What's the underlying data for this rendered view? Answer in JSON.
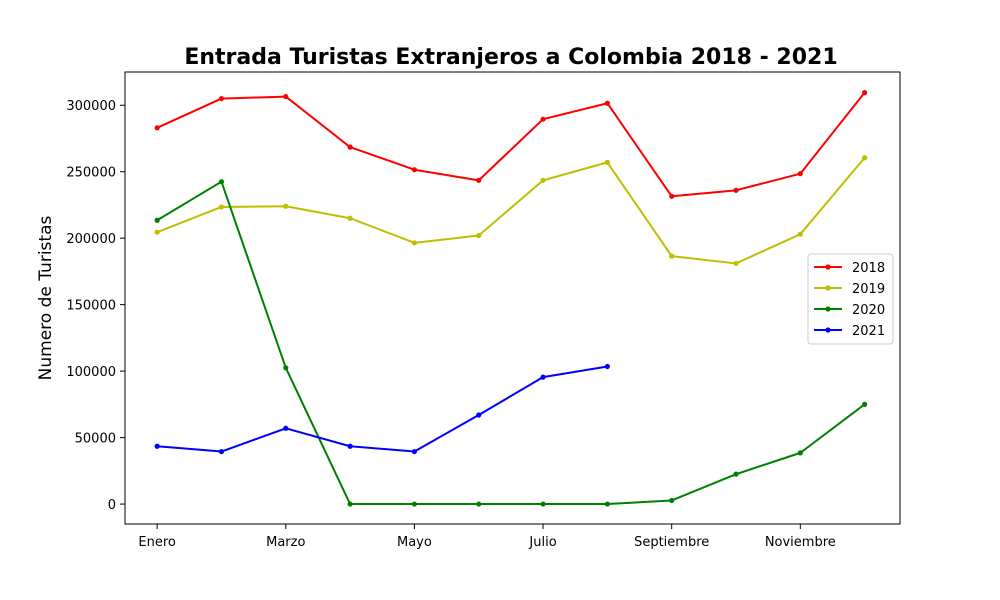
{
  "chart_data": {
    "type": "line",
    "title": "Entrada Turistas Extranjeros a Colombia 2018 - 2021",
    "xlabel": "",
    "ylabel": "Numero de Turistas",
    "x_tick_labels": [
      {
        "index": 0,
        "label": "Enero"
      },
      {
        "index": 2,
        "label": "Marzo"
      },
      {
        "index": 4,
        "label": "Mayo"
      },
      {
        "index": 6,
        "label": "Julio"
      },
      {
        "index": 8,
        "label": "Septiembre"
      },
      {
        "index": 10,
        "label": "Noviembre"
      }
    ],
    "y_ticks": [
      0,
      50000,
      100000,
      150000,
      200000,
      250000,
      300000
    ],
    "xlim": [
      -0.5,
      11.55
    ],
    "ylim": [
      -15000,
      325000
    ],
    "grid": false,
    "legend_position": "center-right",
    "series": [
      {
        "name": "2018",
        "color": "#ff0000",
        "values": [
          283000,
          305000,
          306500,
          268500,
          251500,
          243500,
          289500,
          301500,
          231500,
          236000,
          248500,
          309500
        ]
      },
      {
        "name": "2019",
        "color": "#bfbf00",
        "values": [
          204500,
          223500,
          224000,
          215000,
          196500,
          202000,
          243500,
          257000,
          186500,
          181000,
          203000,
          260500
        ]
      },
      {
        "name": "2020",
        "color": "#008000",
        "values": [
          213500,
          242500,
          102500,
          0,
          0,
          0,
          0,
          0,
          2700,
          22500,
          38500,
          75000
        ]
      },
      {
        "name": "2021",
        "color": "#0000ff",
        "values": [
          43500,
          39500,
          57000,
          43500,
          39500,
          67000,
          95500,
          103500
        ]
      }
    ]
  }
}
